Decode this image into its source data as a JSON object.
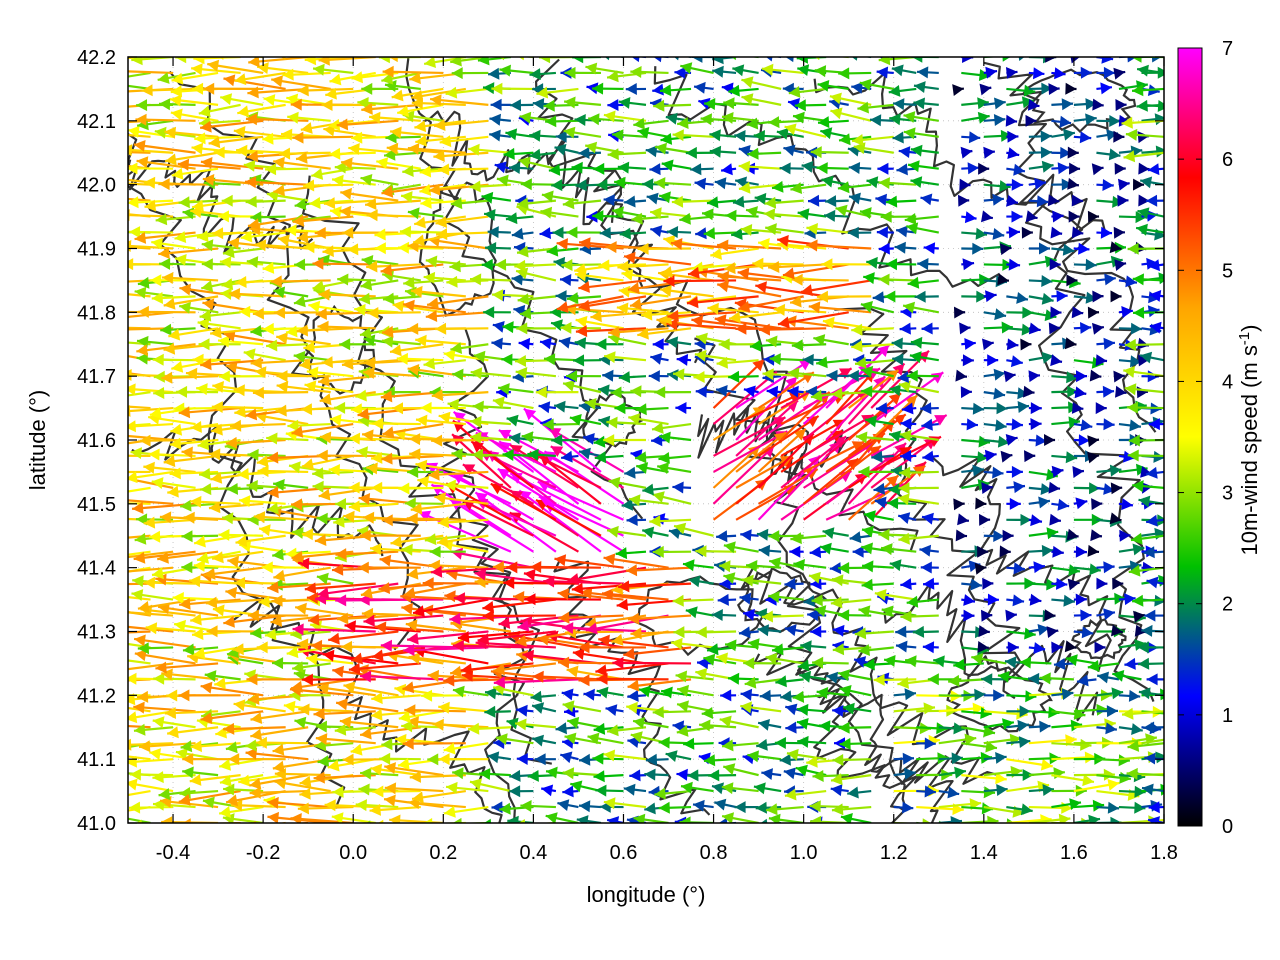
{
  "chart_data": {
    "type": "vector-field",
    "xlabel": "longitude (°)",
    "ylabel": "latitude (°)",
    "colorbar_label": "10m-wind speed (m s",
    "colorbar_label_sup": "-1",
    "colorbar_label_end": ")",
    "xlim": [
      -0.5,
      1.8
    ],
    "ylim": [
      41.0,
      42.2
    ],
    "x_ticks": [
      -0.4,
      -0.2,
      0.0,
      0.2,
      0.4,
      0.6,
      0.8,
      1.0,
      1.2,
      1.4,
      1.6,
      1.8
    ],
    "x_tick_labels": [
      "-0.4",
      "-0.2",
      "0.0",
      "0.2",
      "0.4",
      "0.6",
      "0.8",
      "1.0",
      "1.2",
      "1.4",
      "1.6",
      "1.8"
    ],
    "y_ticks": [
      41.0,
      41.1,
      41.2,
      41.3,
      41.4,
      41.5,
      41.6,
      41.7,
      41.8,
      41.9,
      42.0,
      42.1,
      42.2
    ],
    "y_tick_labels": [
      "41.0",
      "41.1",
      "41.2",
      "41.3",
      "41.4",
      "41.5",
      "41.6",
      "41.7",
      "41.8",
      "41.9",
      "42.0",
      "42.1",
      "42.2"
    ],
    "colorbar_range": [
      0,
      7
    ],
    "colorbar_ticks": [
      0,
      1,
      2,
      3,
      4,
      5,
      6,
      7
    ],
    "colorbar_tick_labels": [
      "0",
      "1",
      "2",
      "3",
      "4",
      "5",
      "6",
      "7"
    ],
    "colormap": [
      "#000000",
      "#0000ff",
      "#00c000",
      "#ffff00",
      "#ffa500",
      "#ff0000",
      "#ff00ff"
    ],
    "contour_color": "#333333",
    "grid": true,
    "series": [
      {
        "kind": "wind-vectors",
        "lon_range": [
          -0.5,
          1.8
        ],
        "lat_range": [
          41.0,
          42.2
        ],
        "lon_step": 0.05,
        "lat_step": 0.025,
        "notes_regions": [
          {
            "lon": [
              -0.5,
              0.3
            ],
            "lat": [
              41.0,
              42.2
            ],
            "speed": 3.8,
            "dir_to": "W"
          },
          {
            "lon": [
              0.3,
              0.6
            ],
            "lat": [
              41.35,
              41.55
            ],
            "speed": 6.8,
            "dir_to": "NW"
          },
          {
            "lon": [
              0.0,
              0.8
            ],
            "lat": [
              41.2,
              41.4
            ],
            "speed": 5.5,
            "dir_to": "W"
          },
          {
            "lon": [
              0.8,
              1.2
            ],
            "lat": [
              41.45,
              41.65
            ],
            "speed": 5.8,
            "dir_to": "NE"
          },
          {
            "lon": [
              0.6,
              1.2
            ],
            "lat": [
              41.75,
              41.9
            ],
            "speed": 4.5,
            "dir_to": "W"
          },
          {
            "lon": [
              1.2,
              1.8
            ],
            "lat": [
              41.0,
              41.2
            ],
            "speed": 2.6,
            "dir_to": "E"
          },
          {
            "lon": [
              1.35,
              1.8
            ],
            "lat": [
              41.25,
              42.2
            ],
            "speed": 1.2,
            "dir_to": "E"
          }
        ]
      }
    ]
  }
}
